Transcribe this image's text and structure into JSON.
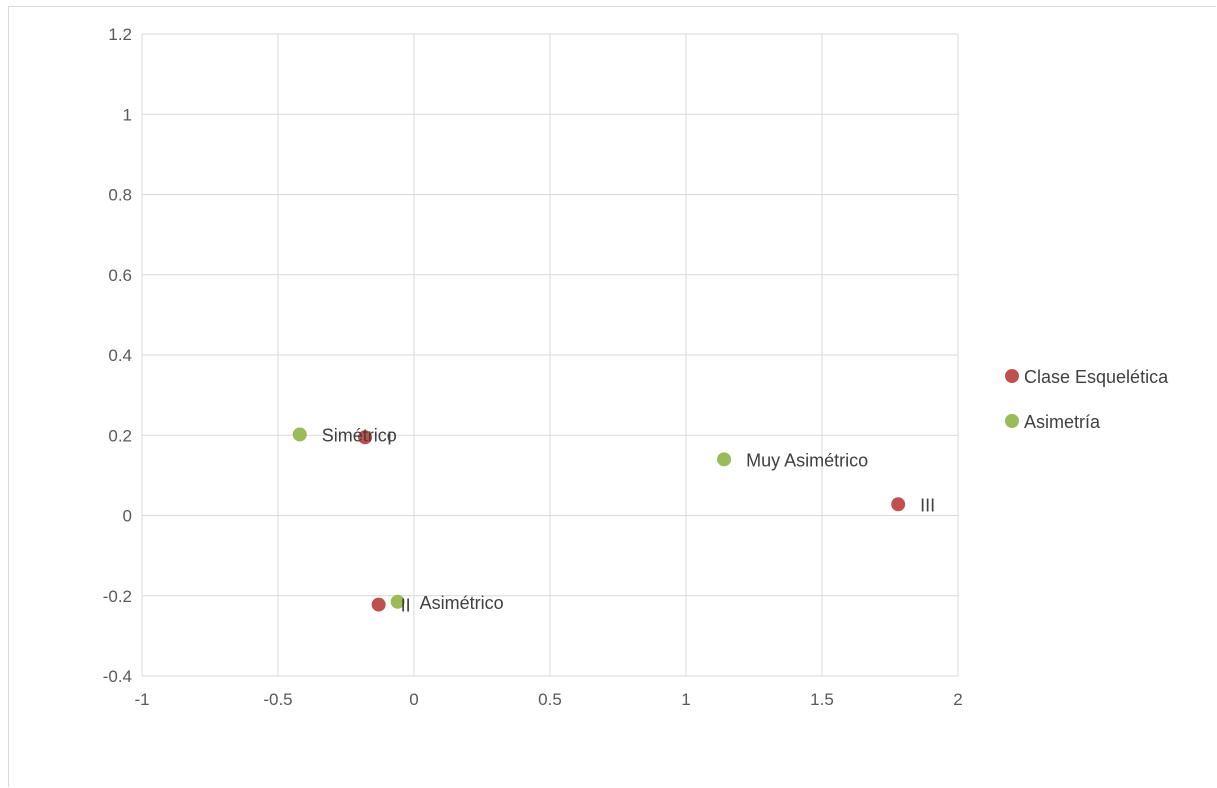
{
  "chart_data": {
    "type": "scatter",
    "title": "",
    "xlabel": "",
    "ylabel": "",
    "xlim": [
      -1,
      2
    ],
    "ylim": [
      -0.4,
      1.2
    ],
    "x_ticks": [
      -1,
      -0.5,
      0,
      0.5,
      1,
      1.5,
      2
    ],
    "y_ticks": [
      -0.4,
      -0.2,
      0,
      0.2,
      0.4,
      0.6,
      0.8,
      1,
      1.2
    ],
    "x_tick_labels": [
      "-1",
      "-0.5",
      "0",
      "0.5",
      "1",
      "1.5",
      "2"
    ],
    "y_tick_labels": [
      "-0.4",
      "-0.2",
      "0",
      "0.2",
      "0.4",
      "0.6",
      "0.8",
      "1",
      "1.2"
    ],
    "grid": true,
    "legend_position": "right",
    "series": [
      {
        "name": "Clase Esquelética",
        "color": "#c0504d",
        "points": [
          {
            "x": -0.18,
            "y": 0.195,
            "label": "I"
          },
          {
            "x": -0.13,
            "y": -0.222,
            "label": "II"
          },
          {
            "x": 1.78,
            "y": 0.028,
            "label": "III"
          }
        ]
      },
      {
        "name": "Asimetría",
        "color": "#9bbb59",
        "points": [
          {
            "x": -0.42,
            "y": 0.202,
            "label": "Simétrico"
          },
          {
            "x": -0.06,
            "y": -0.215,
            "label": "Asimétrico"
          },
          {
            "x": 1.14,
            "y": 0.14,
            "label": "Muy Asimétrico"
          }
        ]
      }
    ]
  }
}
